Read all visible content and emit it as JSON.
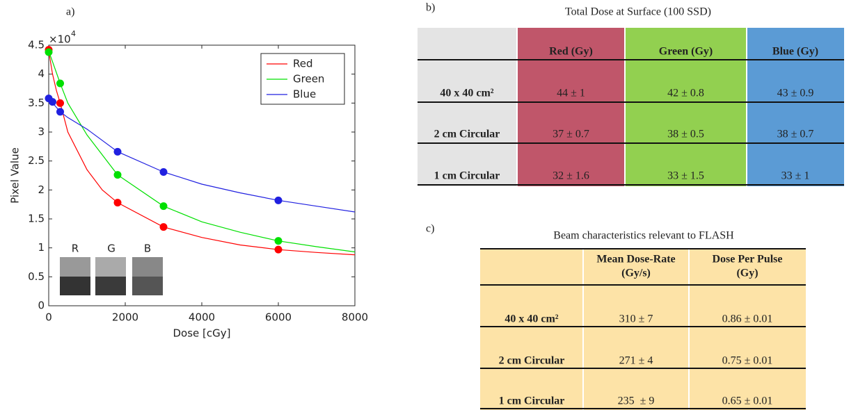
{
  "panel_labels": [
    "a)",
    "b)",
    "c)"
  ],
  "chart_data": {
    "type": "line",
    "xlabel": "Dose [cGy]",
    "ylabel": "Pixel Value",
    "y_exponent": {
      "base": "×10",
      "power": "4"
    },
    "xlim": [
      0,
      8000
    ],
    "xticks": [
      0,
      2000,
      4000,
      6000,
      8000
    ],
    "ylim": [
      0,
      4.5
    ],
    "yticks": [
      0,
      0.5,
      1,
      1.5,
      2,
      2.5,
      3,
      3.5,
      4,
      4.5
    ],
    "legend": "upper right",
    "inset_labels": [
      "R",
      "G",
      "B"
    ],
    "series": [
      {
        "name": "Red",
        "color": "#ff0000",
        "x": [
          0,
          300,
          1800,
          3000,
          6000
        ],
        "values": [
          4.42,
          3.5,
          1.78,
          1.36,
          0.97
        ],
        "fit": {
          "x": [
            0,
            100,
            200,
            300,
            500,
            1000,
            1400,
            1800,
            3000,
            4000,
            5000,
            6000,
            7000,
            8000
          ],
          "values": [
            4.4,
            4.0,
            3.72,
            3.5,
            3.0,
            2.35,
            2.0,
            1.78,
            1.36,
            1.18,
            1.05,
            0.97,
            0.92,
            0.88
          ]
        }
      },
      {
        "name": "Green",
        "color": "#00e000",
        "x": [
          0,
          300,
          1800,
          3000,
          6000
        ],
        "values": [
          4.38,
          3.84,
          2.26,
          1.72,
          1.12
        ],
        "fit": {
          "x": [
            0,
            300,
            500,
            1000,
            1800,
            3000,
            4000,
            5000,
            6000,
            7000,
            8000
          ],
          "values": [
            4.4,
            3.84,
            3.5,
            2.95,
            2.26,
            1.72,
            1.45,
            1.27,
            1.12,
            1.02,
            0.93
          ]
        }
      },
      {
        "name": "Blue",
        "color": "#2020e0",
        "x": [
          0,
          100,
          300,
          1800,
          3000,
          6000
        ],
        "values": [
          3.58,
          3.52,
          3.35,
          2.66,
          2.31,
          1.82
        ],
        "fit": {
          "x": [
            0,
            300,
            500,
            1000,
            1800,
            3000,
            4000,
            5000,
            6000,
            7000,
            8000
          ],
          "values": [
            3.58,
            3.35,
            3.25,
            3.05,
            2.66,
            2.31,
            2.1,
            1.95,
            1.82,
            1.72,
            1.62
          ]
        }
      }
    ]
  },
  "tables": [
    {
      "title": "Total Dose at Surface (100 SSD)",
      "columns": [
        "Red (Gy)",
        "Green (Gy)",
        "Blue (Gy)"
      ],
      "rows": [
        {
          "label": "40 x 40 cm²",
          "cells": [
            "44 ± 1",
            "42 ± 0.8",
            "43 ± 0.9"
          ]
        },
        {
          "label": "2 cm Circular",
          "cells": [
            "37 ± 0.7",
            "38 ± 0.5",
            "38 ± 0.7"
          ]
        },
        {
          "label": "1 cm Circular",
          "cells": [
            "32 ± 1.6",
            "33 ± 1.5",
            "33 ± 1"
          ]
        }
      ]
    },
    {
      "title": "Beam characteristics relevant to FLASH",
      "columns": [
        [
          "Mean Dose-Rate",
          "(Gy/s)"
        ],
        [
          "Dose Per Pulse",
          "(Gy)"
        ]
      ],
      "rows": [
        {
          "label": "40 x 40 cm²",
          "cells": [
            "310 ± 7",
            "0.86 ± 0.01"
          ]
        },
        {
          "label": "2 cm Circular",
          "cells": [
            "271 ± 4",
            "0.75 ± 0.01"
          ]
        },
        {
          "label": "1 cm Circular",
          "cells": [
            "235  ± 9",
            "0.65 ± 0.01"
          ]
        }
      ]
    }
  ]
}
